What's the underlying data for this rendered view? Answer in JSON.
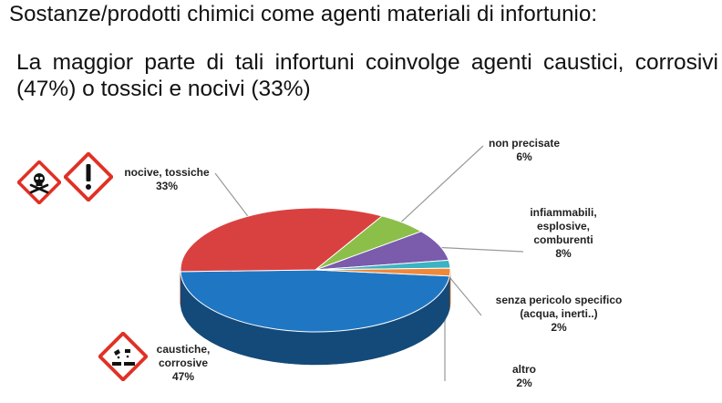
{
  "slide": {
    "title": "Sostanze/prodotti chimici come agenti materiali di infortunio:",
    "subtitle": "La maggior parte di tali infortuni coinvolge agenti caustici, corrosivi (47%) o tossici e nocivi (33%)"
  },
  "chart_data": {
    "type": "pie",
    "title": "",
    "slices": [
      {
        "label": "caustiche, corrosive",
        "value": 47,
        "value_label": "47%",
        "color": "#1f77c4"
      },
      {
        "label": "nocive, tossiche",
        "value": 33,
        "value_label": "33%",
        "color": "#d94141"
      },
      {
        "label": "non precisate",
        "value": 6,
        "value_label": "6%",
        "color": "#8cbf4a"
      },
      {
        "label": "infiammabili, esplosive, comburenti",
        "value": 8,
        "value_label": "8%",
        "color": "#7b5bab"
      },
      {
        "label": "senza pericolo specifico (acqua, inerti..)",
        "value": 2,
        "value_label": "2%",
        "color": "#3bb3c3"
      },
      {
        "label": "altro",
        "value": 2,
        "value_label": "2%",
        "color": "#f0883a"
      }
    ],
    "legend": "none"
  },
  "icons": [
    "skull-crossbones-hazard-icon",
    "exclamation-hazard-icon",
    "corrosive-hazard-icon"
  ],
  "colors": {
    "hazard_red": "#e03024"
  }
}
